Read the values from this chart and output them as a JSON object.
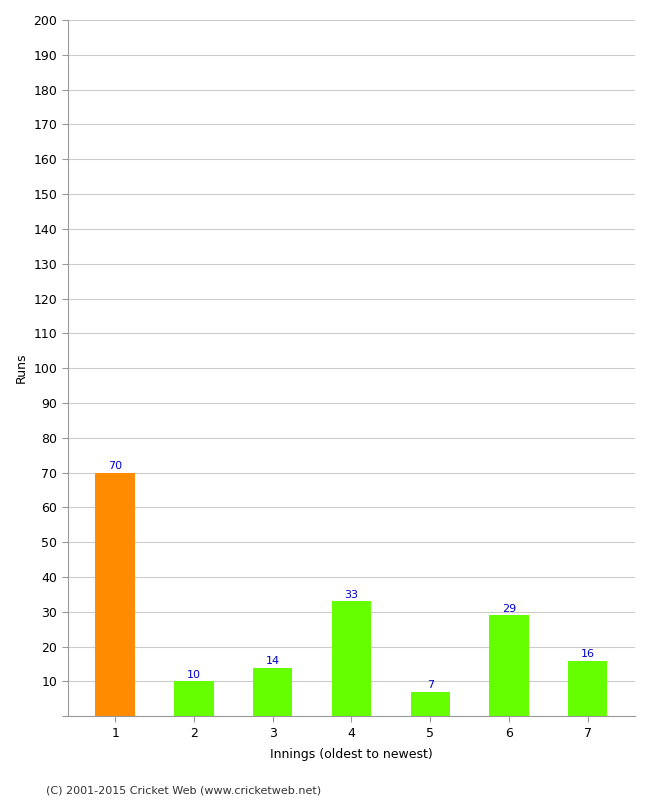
{
  "categories": [
    "1",
    "2",
    "3",
    "4",
    "5",
    "6",
    "7"
  ],
  "values": [
    70,
    10,
    14,
    33,
    7,
    29,
    16
  ],
  "bar_colors": [
    "#FF8C00",
    "#66FF00",
    "#66FF00",
    "#66FF00",
    "#66FF00",
    "#66FF00",
    "#66FF00"
  ],
  "ylabel": "Runs",
  "xlabel": "Innings (oldest to newest)",
  "ylim": [
    0,
    200
  ],
  "yticks": [
    0,
    10,
    20,
    30,
    40,
    50,
    60,
    70,
    80,
    90,
    100,
    110,
    120,
    130,
    140,
    150,
    160,
    170,
    180,
    190,
    200
  ],
  "label_color": "#0000CC",
  "label_fontsize": 8,
  "axis_fontsize": 9,
  "tick_label_fontsize": 9,
  "footer_text": "(C) 2001-2015 Cricket Web (www.cricketweb.net)",
  "background_color": "#FFFFFF",
  "plot_bg_color": "#FFFFFF",
  "grid_color": "#CCCCCC",
  "bar_width": 0.5,
  "spine_color": "#999999"
}
